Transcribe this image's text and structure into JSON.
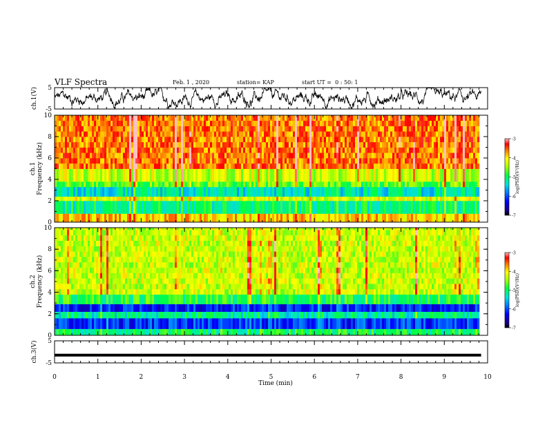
{
  "header": {
    "title": "VLF Spectra",
    "date": "Feb. 1 , 2020",
    "station": "station= KAP",
    "start": "start UT =  0 : 50: 1"
  },
  "chart_data": [
    {
      "type": "line",
      "panel": "ch1-waveform",
      "ylabel": "ch.1(V)",
      "ylim": [
        -5,
        5
      ],
      "yticks": [
        "5",
        "-5"
      ],
      "xlim": [
        0,
        10
      ],
      "data_extent_min": [
        0,
        9.85
      ],
      "color": "#000000"
    },
    {
      "type": "heatmap",
      "panel": "ch1-spectrogram",
      "ylabel_line1": "ch.1",
      "ylabel_line2": "Frequency (kHz)",
      "ylim": [
        0,
        10
      ],
      "yticks": [
        "0",
        "2",
        "4",
        "6",
        "8",
        "10"
      ],
      "xlim": [
        0,
        10
      ],
      "data_extent_min": [
        0,
        9.85
      ],
      "bands": [
        {
          "f_lo": 0.0,
          "f_hi": 0.8,
          "level": -3.9
        },
        {
          "f_lo": 0.8,
          "f_hi": 2.0,
          "level": -5.1
        },
        {
          "f_lo": 2.0,
          "f_hi": 2.4,
          "level": -4.2
        },
        {
          "f_lo": 2.4,
          "f_hi": 3.3,
          "level": -5.3
        },
        {
          "f_lo": 3.3,
          "f_hi": 3.8,
          "level": -4.7
        },
        {
          "f_lo": 3.8,
          "f_hi": 5.0,
          "level": -4.3
        },
        {
          "f_lo": 5.0,
          "f_hi": 10.0,
          "level": -3.6
        }
      ],
      "colorbar": {
        "label": "log(PSD)(V²/Hz)",
        "range": [
          -7,
          -3
        ],
        "ticks": [
          "-3",
          "-4",
          "-5",
          "-6",
          "-7"
        ]
      }
    },
    {
      "type": "heatmap",
      "panel": "ch2-spectrogram",
      "ylabel_line1": "ch.2",
      "ylabel_line2": "Frequency (kHz)",
      "ylim": [
        0,
        10
      ],
      "yticks": [
        "0",
        "2",
        "4",
        "6",
        "8",
        "10"
      ],
      "xlim": [
        0,
        10
      ],
      "data_extent_min": [
        0,
        9.85
      ],
      "bands": [
        {
          "f_lo": 0.0,
          "f_hi": 0.6,
          "level": -5.0
        },
        {
          "f_lo": 0.6,
          "f_hi": 1.6,
          "level": -6.1
        },
        {
          "f_lo": 1.6,
          "f_hi": 2.2,
          "level": -5.2
        },
        {
          "f_lo": 2.2,
          "f_hi": 2.9,
          "level": -6.2
        },
        {
          "f_lo": 2.9,
          "f_hi": 3.8,
          "level": -4.9
        },
        {
          "f_lo": 3.8,
          "f_hi": 10.0,
          "level": -4.3
        }
      ],
      "colorbar": {
        "label": "log(PSD)(V²/Hz)",
        "range": [
          -7,
          -3
        ],
        "ticks": [
          "-3",
          "-4",
          "-5",
          "-6",
          "-7"
        ]
      }
    },
    {
      "type": "line",
      "panel": "ch3-waveform",
      "ylabel": "ch.3(V)",
      "ylim": [
        -5,
        5
      ],
      "yticks": [
        "5",
        "-5"
      ],
      "xlim": [
        0,
        10
      ],
      "data_extent_min": [
        0,
        9.85
      ],
      "constant_value": -1.5,
      "xlabel": "Time (min)",
      "xticks": [
        "0",
        "1",
        "2",
        "3",
        "4",
        "5",
        "6",
        "7",
        "8",
        "9",
        "10"
      ]
    }
  ]
}
